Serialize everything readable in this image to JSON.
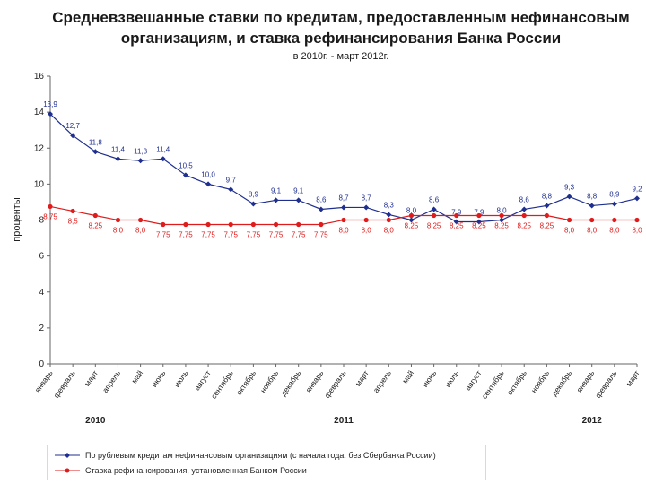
{
  "header": {
    "title_line1": "Средневзвешанные ставки по кредитам, предоставленным нефинансовым",
    "title_line2": "организациям, и ставка рефинансирования Банка России",
    "subtitle": "в 2010г. - март 2012г."
  },
  "chart_data": {
    "type": "line",
    "ylabel": "проценты",
    "ylim": [
      0,
      16
    ],
    "yticks": [
      0,
      2,
      4,
      6,
      8,
      10,
      12,
      14,
      16
    ],
    "categories": [
      "январь",
      "февраль",
      "март",
      "апрель",
      "май",
      "июнь",
      "июль",
      "август",
      "сентябрь",
      "октябрь",
      "ноябрь",
      "декабрь",
      "январь",
      "февраль",
      "март",
      "апрель",
      "май",
      "июнь",
      "июль",
      "август",
      "сентябрь",
      "октябрь",
      "ноябрь",
      "декабрь",
      "январь",
      "февраль",
      "март"
    ],
    "year_labels": [
      {
        "label": "2010",
        "index": 2
      },
      {
        "label": "2011",
        "index": 13
      },
      {
        "label": "2012",
        "index": 24
      }
    ],
    "series": [
      {
        "name": "По рублевым кредитам нефинансовым организациям (с начала года, без Сбербанка России)",
        "color": "#1f2f8f",
        "marker": "diamond",
        "values": [
          13.9,
          12.7,
          11.8,
          11.4,
          11.3,
          11.4,
          10.5,
          10.0,
          9.7,
          8.9,
          9.1,
          9.1,
          8.6,
          8.7,
          8.7,
          8.3,
          8.0,
          8.6,
          7.9,
          7.9,
          8.0,
          8.6,
          8.8,
          9.3,
          8.8,
          8.9,
          9.2
        ],
        "labels": [
          "13,9",
          "12,7",
          "11,8",
          "11,4",
          "11,3",
          "11,4",
          "10,5",
          "10,0",
          "9,7",
          "8,9",
          "9,1",
          "9,1",
          "8,6",
          "8,7",
          "8,7",
          "8,3",
          "8,0",
          "8,6",
          "7,9",
          "7,9",
          "8,0",
          "8,6",
          "8,8",
          "9,3",
          "8,8",
          "8,9",
          "9,2"
        ]
      },
      {
        "name": "Ставка рефинансирования, установленная Банком России",
        "color": "#e01b1b",
        "marker": "circle",
        "values": [
          8.75,
          8.5,
          8.25,
          8.0,
          8.0,
          7.75,
          7.75,
          7.75,
          7.75,
          7.75,
          7.75,
          7.75,
          7.75,
          8.0,
          8.0,
          8.0,
          8.25,
          8.25,
          8.25,
          8.25,
          8.25,
          8.25,
          8.25,
          8.0,
          8.0,
          8.0,
          8.0
        ],
        "labels": [
          "8,75",
          "8,5",
          "8,25",
          "8,0",
          "8,0",
          "7,75",
          "7,75",
          "7,75",
          "7,75",
          "7,75",
          "7,75",
          "7,75",
          "7,75",
          "8,0",
          "8,0",
          "8,0",
          "8,25",
          "8,25",
          "8,25",
          "8,25",
          "8,25",
          "8,25",
          "8,25",
          "8,0",
          "8,0",
          "8,0",
          "8,0"
        ]
      }
    ]
  }
}
